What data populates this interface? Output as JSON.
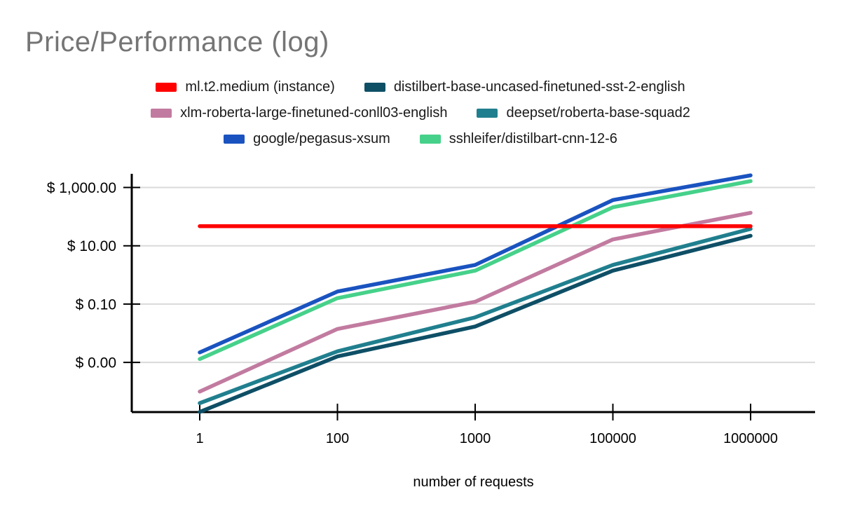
{
  "title": "Price/Performance (log)",
  "colors": {
    "title_text": "#757575",
    "grid": "#dadada",
    "axis": "#000000",
    "reference_line": "#ff0000"
  },
  "chart_data": {
    "type": "line",
    "title": "Price/Performance (log)",
    "xlabel": "number of requests",
    "ylabel": "",
    "x_scale": "categorical",
    "y_scale": "log",
    "grid": true,
    "legend_position": "top",
    "categories": [
      "1",
      "100",
      "1000",
      "100000",
      "1000000"
    ],
    "y_ticks": [
      {
        "label": "$ 1,000.00",
        "value": 1000
      },
      {
        "label": "$ 10.00",
        "value": 10
      },
      {
        "label": "$ 0.10",
        "value": 0.1
      },
      {
        "label": "$ 0.00",
        "value": 0.001
      }
    ],
    "series": [
      {
        "name": "ml.t2.medium (instance)",
        "color": "#ff0000",
        "values": [
          47,
          47,
          47,
          47,
          47
        ]
      },
      {
        "name": "distilbert-base-uncased-finetuned-sst-2-english",
        "color": "#0e4f66",
        "values": [
          2e-05,
          0.0016,
          0.017,
          1.4,
          22
        ]
      },
      {
        "name": "xlm-roberta-large-finetuned-conll03-english",
        "color": "#c27ba0",
        "values": [
          0.0001,
          0.014,
          0.12,
          16.5,
          135
        ]
      },
      {
        "name": "deepset/roberta-base-squad2",
        "color": "#207f8e",
        "values": [
          4e-05,
          0.0024,
          0.035,
          2.2,
          38
        ]
      },
      {
        "name": "google/pegasus-xsum",
        "color": "#1a53c0",
        "values": [
          0.0022,
          0.27,
          2.2,
          370,
          2600
        ]
      },
      {
        "name": "sshleifer/distilbart-cnn-12-6",
        "color": "#46d18a",
        "values": [
          0.0013,
          0.16,
          1.4,
          210,
          1650
        ]
      }
    ],
    "legend_rows": [
      [
        0,
        1
      ],
      [
        2,
        3
      ],
      [
        4,
        5
      ]
    ]
  }
}
